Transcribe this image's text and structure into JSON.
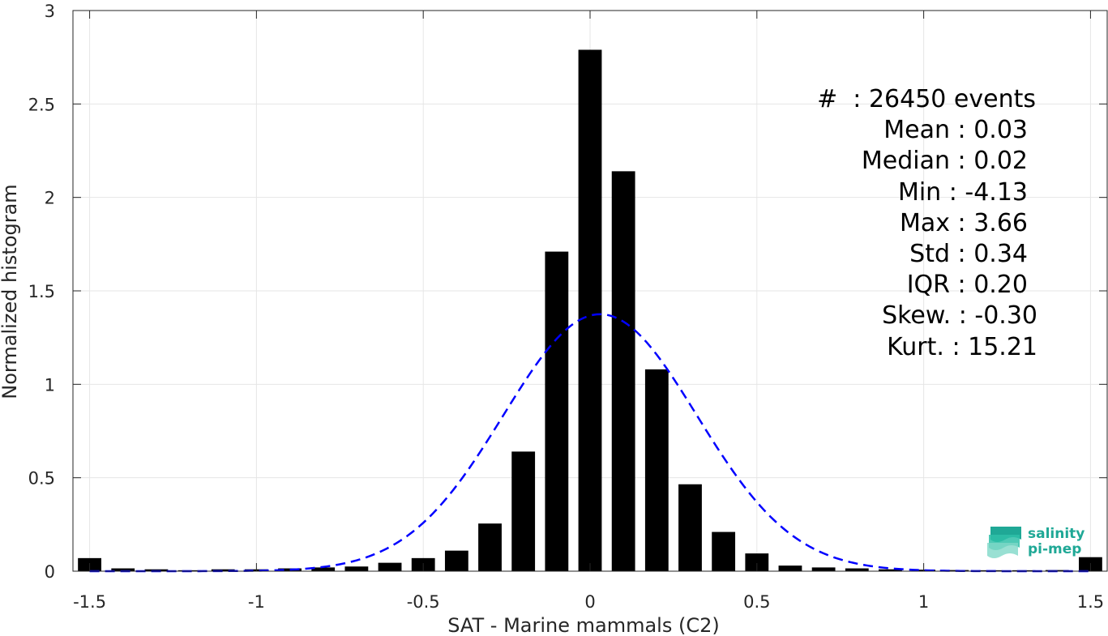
{
  "chart_data": {
    "type": "bar",
    "xlabel": "SAT - Marine mammals (C2)",
    "ylabel": "Normalized histogram",
    "xlim": [
      -1.55,
      1.55
    ],
    "ylim": [
      0,
      3
    ],
    "xticks": [
      "-1.5",
      "-1",
      "-0.5",
      "0",
      "0.5",
      "1",
      "1.5"
    ],
    "yticks": [
      "0",
      "0.5",
      "1",
      "1.5",
      "2",
      "2.5",
      "3"
    ],
    "grid": true,
    "bar_color": "#000000",
    "x": [
      -1.5,
      -1.4,
      -1.3,
      -1.2,
      -1.1,
      -1.0,
      -0.9,
      -0.8,
      -0.7,
      -0.6,
      -0.5,
      -0.4,
      -0.3,
      -0.2,
      -0.1,
      0.0,
      0.1,
      0.2,
      0.3,
      0.4,
      0.5,
      0.6,
      0.7,
      0.8,
      0.9,
      1.0,
      1.1,
      1.2,
      1.3,
      1.4,
      1.5
    ],
    "values": [
      0.07,
      0.015,
      0.01,
      0.005,
      0.01,
      0.01,
      0.015,
      0.02,
      0.025,
      0.045,
      0.07,
      0.11,
      0.255,
      0.64,
      1.71,
      2.79,
      2.14,
      1.08,
      0.465,
      0.21,
      0.095,
      0.03,
      0.02,
      0.015,
      0.01,
      0.008,
      0.006,
      0.005,
      0.005,
      0.006,
      0.075
    ],
    "fit_curve": {
      "style": "dashed",
      "color": "#0000ff",
      "mean": 0.03,
      "std": 0.29,
      "peak": 1.375
    }
  },
  "stats": {
    "count": "#  : 26450 events",
    "mean": "Mean : 0.03",
    "median": "Median : 0.02",
    "min": "Min : -4.13",
    "max": "Max : 3.66",
    "std": "Std : 0.34",
    "iqr": "IQR : 0.20",
    "skew": "Skew. : -0.30",
    "kurt": "Kurt. : 15.21"
  },
  "logo": {
    "line1": "salinity",
    "line2": "pi-mep",
    "color": "#1fa896"
  }
}
